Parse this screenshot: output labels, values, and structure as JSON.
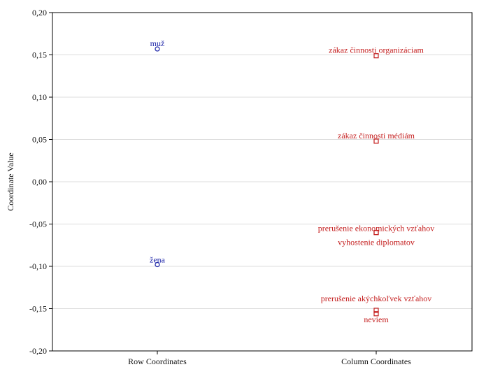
{
  "chart_data": {
    "type": "scatter",
    "title": "",
    "xlabel": "",
    "ylabel": "Coordinate Value",
    "ylim": [
      -0.2,
      0.2
    ],
    "yticks": [
      "0,20",
      "0,15",
      "0,10",
      "0,05",
      "0,00",
      "-0,05",
      "-0,10",
      "-0,15",
      "-0,20"
    ],
    "ytick_values": [
      0.2,
      0.15,
      0.1,
      0.05,
      0.0,
      -0.05,
      -0.1,
      -0.15,
      -0.2
    ],
    "categories": [
      "Row Coordinates",
      "Column Coordinates"
    ],
    "grid": true,
    "series": [
      {
        "category": "Row Coordinates",
        "marker": "circle",
        "color": "#1c24a8",
        "points": [
          {
            "label": "muž",
            "y": 0.157
          },
          {
            "label": "žena",
            "y": -0.098
          }
        ]
      },
      {
        "category": "Column Coordinates",
        "marker": "square",
        "color": "#c41e1e",
        "points": [
          {
            "label": "zákaz činnosti organizáciam",
            "y": 0.149
          },
          {
            "label": "zákaz činnosti médiám",
            "y": 0.048
          },
          {
            "label": "prerušenie ekonomických vzťahov",
            "y": -0.06
          },
          {
            "label": "vyhostenie diplomatov",
            "y": -0.06
          },
          {
            "label": "prerušenie akýchkoľvek vzťahov",
            "y": -0.152
          },
          {
            "label": "neviem",
            "y": -0.156
          }
        ]
      }
    ]
  }
}
